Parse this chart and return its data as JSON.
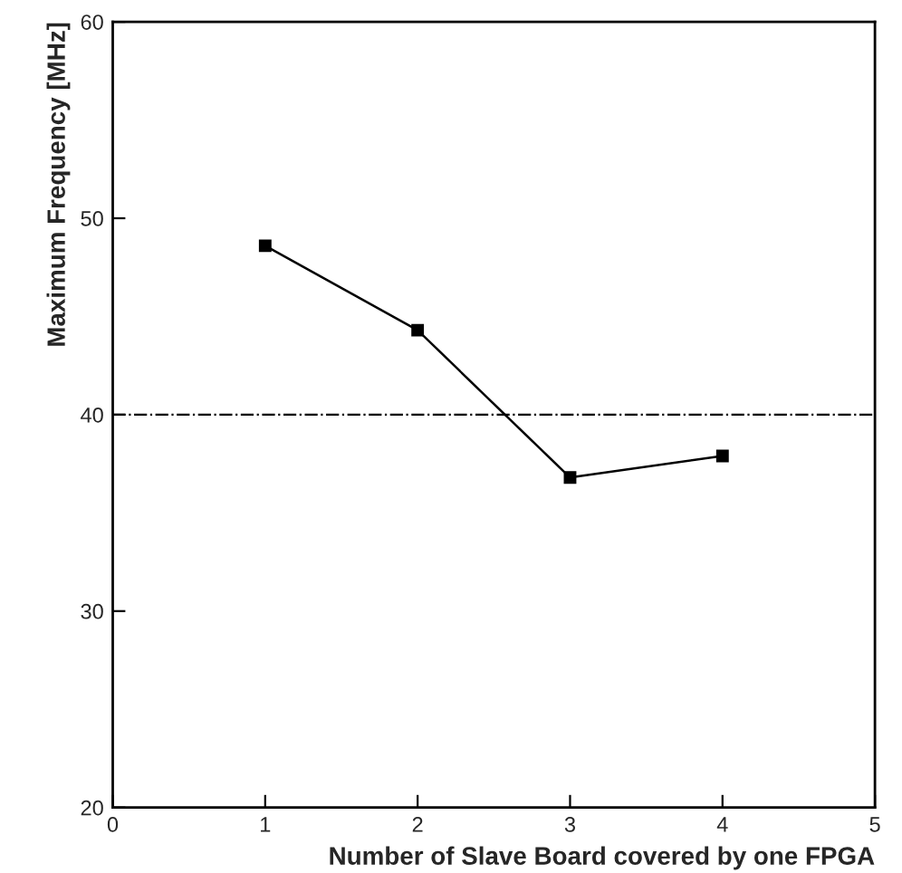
{
  "chart_data": {
    "type": "line",
    "xlabel": "Number of Slave Board covered by one FPGA",
    "ylabel": "Maximum Frequency [MHz]",
    "x": [
      1,
      2,
      3,
      4
    ],
    "series": [
      {
        "color": "#000000",
        "values": [
          48.6,
          44.3,
          36.8,
          37.9
        ]
      }
    ],
    "xlim": [
      0,
      5
    ],
    "xticks": [
      0,
      1,
      2,
      3,
      4,
      5
    ],
    "ylim": [
      20,
      60
    ],
    "yticks": [
      20,
      30,
      40,
      50,
      60
    ],
    "marker": "square",
    "line_style": "solid",
    "grid": false,
    "legend": false,
    "ref_lines": [
      {
        "axis": "y",
        "value": 40,
        "color": "#000000",
        "line_style": "dashdot"
      }
    ]
  }
}
